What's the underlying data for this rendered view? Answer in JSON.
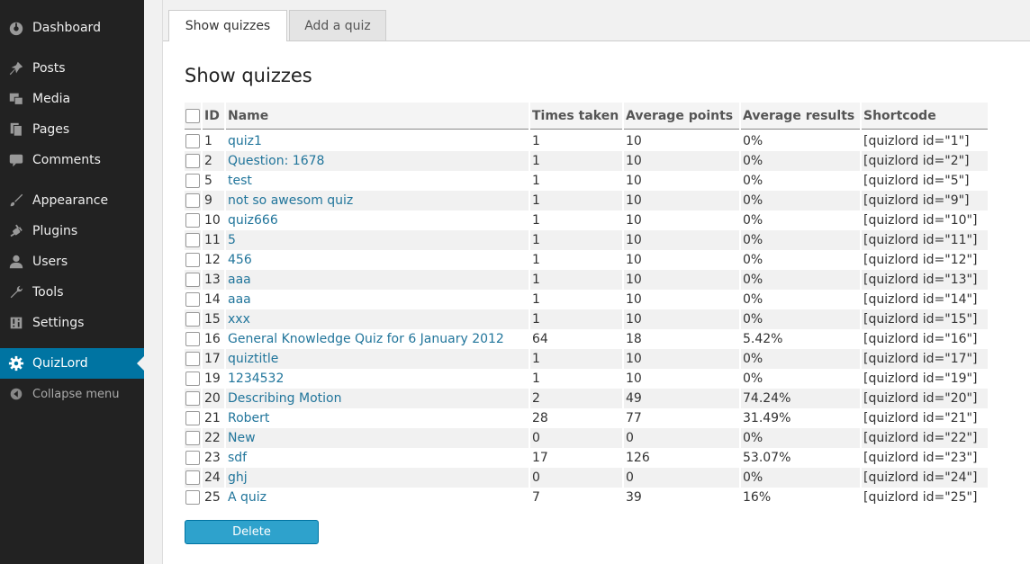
{
  "sidebar": {
    "items": [
      {
        "label": "Dashboard",
        "icon": "dashboard-icon",
        "active": false
      },
      {
        "label": "Posts",
        "icon": "pin-icon",
        "active": false
      },
      {
        "label": "Media",
        "icon": "media-icon",
        "active": false
      },
      {
        "label": "Pages",
        "icon": "pages-icon",
        "active": false
      },
      {
        "label": "Comments",
        "icon": "comment-icon",
        "active": false
      },
      {
        "label": "Appearance",
        "icon": "brush-icon",
        "active": false
      },
      {
        "label": "Plugins",
        "icon": "plug-icon",
        "active": false
      },
      {
        "label": "Users",
        "icon": "user-icon",
        "active": false
      },
      {
        "label": "Tools",
        "icon": "wrench-icon",
        "active": false
      },
      {
        "label": "Settings",
        "icon": "sliders-icon",
        "active": false
      },
      {
        "label": "QuizLord",
        "icon": "gear-icon",
        "active": true
      }
    ],
    "collapse_label": "Collapse menu"
  },
  "tabs": [
    {
      "label": "Show quizzes",
      "active": true
    },
    {
      "label": "Add a quiz",
      "active": false
    }
  ],
  "page_title": "Show quizzes",
  "table": {
    "headers": {
      "id": "ID",
      "name": "Name",
      "times": "Times taken",
      "points": "Average points",
      "results": "Average results",
      "shortcode": "Shortcode"
    },
    "rows": [
      {
        "id": "1",
        "name": "quiz1",
        "times": "1",
        "points": "10",
        "results": "0%",
        "shortcode": "[quizlord id=\"1\"]"
      },
      {
        "id": "2",
        "name": "Question: 1678",
        "times": "1",
        "points": "10",
        "results": "0%",
        "shortcode": "[quizlord id=\"2\"]"
      },
      {
        "id": "5",
        "name": "test",
        "times": "1",
        "points": "10",
        "results": "0%",
        "shortcode": "[quizlord id=\"5\"]"
      },
      {
        "id": "9",
        "name": "not so awesom quiz",
        "times": "1",
        "points": "10",
        "results": "0%",
        "shortcode": "[quizlord id=\"9\"]"
      },
      {
        "id": "10",
        "name": "quiz666",
        "times": "1",
        "points": "10",
        "results": "0%",
        "shortcode": "[quizlord id=\"10\"]"
      },
      {
        "id": "11",
        "name": "5",
        "times": "1",
        "points": "10",
        "results": "0%",
        "shortcode": "[quizlord id=\"11\"]"
      },
      {
        "id": "12",
        "name": "456",
        "times": "1",
        "points": "10",
        "results": "0%",
        "shortcode": "[quizlord id=\"12\"]"
      },
      {
        "id": "13",
        "name": "aaa",
        "times": "1",
        "points": "10",
        "results": "0%",
        "shortcode": "[quizlord id=\"13\"]"
      },
      {
        "id": "14",
        "name": "aaa",
        "times": "1",
        "points": "10",
        "results": "0%",
        "shortcode": "[quizlord id=\"14\"]"
      },
      {
        "id": "15",
        "name": "xxx",
        "times": "1",
        "points": "10",
        "results": "0%",
        "shortcode": "[quizlord id=\"15\"]"
      },
      {
        "id": "16",
        "name": "General Knowledge Quiz for 6 January 2012",
        "times": "64",
        "points": "18",
        "results": "5.42%",
        "shortcode": "[quizlord id=\"16\"]"
      },
      {
        "id": "17",
        "name": "quiztitle",
        "times": "1",
        "points": "10",
        "results": "0%",
        "shortcode": "[quizlord id=\"17\"]"
      },
      {
        "id": "19",
        "name": "1234532",
        "times": "1",
        "points": "10",
        "results": "0%",
        "shortcode": "[quizlord id=\"19\"]"
      },
      {
        "id": "20",
        "name": "Describing Motion",
        "times": "2",
        "points": "49",
        "results": "74.24%",
        "shortcode": "[quizlord id=\"20\"]"
      },
      {
        "id": "21",
        "name": "Robert",
        "times": "28",
        "points": "77",
        "results": "31.49%",
        "shortcode": "[quizlord id=\"21\"]"
      },
      {
        "id": "22",
        "name": "New",
        "times": "0",
        "points": "0",
        "results": "0%",
        "shortcode": "[quizlord id=\"22\"]"
      },
      {
        "id": "23",
        "name": "sdf",
        "times": "17",
        "points": "126",
        "results": "53.07%",
        "shortcode": "[quizlord id=\"23\"]"
      },
      {
        "id": "24",
        "name": "ghj",
        "times": "0",
        "points": "0",
        "results": "0%",
        "shortcode": "[quizlord id=\"24\"]"
      },
      {
        "id": "25",
        "name": "A quiz",
        "times": "7",
        "points": "39",
        "results": "16%",
        "shortcode": "[quizlord id=\"25\"]"
      }
    ]
  },
  "delete_label": "Delete",
  "colors": {
    "sidebar_bg": "#222222",
    "active_bg": "#0074a2",
    "link": "#21759b",
    "button": "#2ea2cc"
  }
}
